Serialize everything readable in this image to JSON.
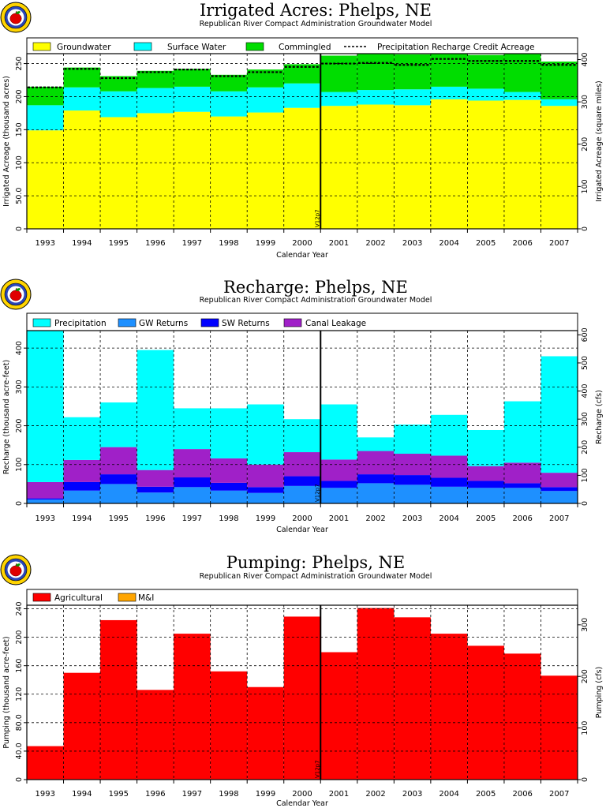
{
  "colors": {
    "groundwater": "#ffff00",
    "surface_water": "#00ffff",
    "commingled": "#00dd00",
    "precipitation": "#00ffff",
    "gw_returns": "#1e90ff",
    "sw_returns": "#0000ff",
    "canal_leakage": "#a020c8",
    "agricultural": "#ff0000",
    "mi": "#ffa500"
  },
  "icons": [
    "apple-logo-icon",
    "apple-logo-icon",
    "apple-logo-icon"
  ],
  "chart_data": [
    {
      "type": "bar",
      "stacked": true,
      "title": "Irrigated  Acres:  Phelps,  NE",
      "subtitle": "Republican  River  Compact  Administration  Groundwater  Model",
      "xlabel": "Calendar  Year",
      "ylabel": "Irrigated  Acreage  (thousand  acres)",
      "ylabel_right": "Irrigated  Acreage  (square  miles)",
      "categories": [
        "1993",
        "1994",
        "1995",
        "1996",
        "1997",
        "1998",
        "1999",
        "2000",
        "2001",
        "2002",
        "2003",
        "2004",
        "2005",
        "2006",
        "2007"
      ],
      "ylim": [
        0,
        265
      ],
      "yticks": [
        "0",
        "50.0",
        "100",
        "150",
        "200",
        "250"
      ],
      "ylim_right": [
        0,
        414
      ],
      "yticks_right": [
        "0",
        "100",
        "200",
        "300",
        "400"
      ],
      "marker": {
        "x": "2000.5",
        "label": "V12p7"
      },
      "grid": true,
      "legend_position": "top",
      "series": [
        {
          "name": "Groundwater",
          "color_key": "groundwater",
          "values": [
            149,
            179,
            169,
            175,
            177,
            170,
            176,
            183,
            186,
            188,
            187,
            196,
            194,
            195,
            186
          ]
        },
        {
          "name": "Surface  Water",
          "color_key": "surface_water",
          "values": [
            38,
            35,
            39,
            38,
            38,
            38,
            38,
            37,
            21,
            22,
            24,
            19,
            18,
            12,
            10
          ]
        },
        {
          "name": "Commingled",
          "color_key": "commingled",
          "values": [
            28,
            30,
            23,
            26,
            27,
            25,
            27,
            29,
            55,
            55,
            53,
            50,
            51,
            58,
            57
          ]
        }
      ],
      "line_series": {
        "name": "Precipitation  Recharge  Credit  Acreage",
        "values": [
          214,
          242,
          228,
          237,
          241,
          231,
          237,
          245,
          250,
          251,
          248,
          257,
          254,
          254,
          248
        ]
      }
    },
    {
      "type": "bar",
      "stacked": true,
      "title": "Recharge:  Phelps,  NE",
      "subtitle": "Republican  River  Compact  Administration  Groundwater  Model",
      "xlabel": "Calendar  Year",
      "ylabel": "Recharge  (thousand  acre-feet)",
      "ylabel_right": "Recharge  (cfs)",
      "categories": [
        "1993",
        "1994",
        "1995",
        "1996",
        "1997",
        "1998",
        "1999",
        "2000",
        "2001",
        "2002",
        "2003",
        "2004",
        "2005",
        "2006",
        "2007"
      ],
      "ylim": [
        0,
        445
      ],
      "yticks": [
        "0",
        "100",
        "200",
        "300",
        "400"
      ],
      "ylim_right": [
        0,
        615
      ],
      "yticks_right": [
        "0",
        "100",
        "200",
        "300",
        "400",
        "500",
        "600"
      ],
      "marker": {
        "x": "2000.5",
        "label": "V12p7"
      },
      "grid": true,
      "legend_position": "top",
      "series": [
        {
          "name": "GW  Returns",
          "color_key": "gw_returns",
          "values": [
            10,
            33,
            50,
            28,
            42,
            33,
            27,
            45,
            40,
            52,
            48,
            43,
            40,
            40,
            32
          ]
        },
        {
          "name": "SW  Returns",
          "color_key": "sw_returns",
          "values": [
            3,
            22,
            25,
            15,
            25,
            20,
            15,
            25,
            18,
            23,
            25,
            23,
            18,
            12,
            10
          ]
        },
        {
          "name": "Canal  Leakage",
          "color_key": "canal_leakage",
          "values": [
            42,
            57,
            70,
            43,
            73,
            63,
            58,
            62,
            55,
            60,
            55,
            57,
            38,
            53,
            37
          ]
        },
        {
          "name": "Precipitation",
          "color_key": "precipitation",
          "values": [
            390,
            110,
            115,
            309,
            105,
            129,
            155,
            85,
            142,
            35,
            75,
            105,
            93,
            158,
            300
          ]
        }
      ]
    },
    {
      "type": "bar",
      "stacked": true,
      "title": "Pumping:  Phelps,  NE",
      "subtitle": "Republican  River  Compact  Administration  Groundwater  Model",
      "xlabel": "Calendar  Year",
      "ylabel": "Pumping  (thousand  acre-feet)",
      "ylabel_right": "Pumping  (cfs)",
      "categories": [
        "1993",
        "1994",
        "1995",
        "1996",
        "1997",
        "1998",
        "1999",
        "2000",
        "2001",
        "2002",
        "2003",
        "2004",
        "2005",
        "2006",
        "2007"
      ],
      "ylim": [
        0,
        245
      ],
      "yticks": [
        "0",
        "40.0",
        "80.0",
        "120",
        "160",
        "200",
        "240"
      ],
      "ylim_right": [
        0,
        338
      ],
      "yticks_right": [
        "0",
        "100",
        "200",
        "300"
      ],
      "marker": {
        "x": "2000.5",
        "label": "V12p7"
      },
      "grid": true,
      "legend_position": "top",
      "series": [
        {
          "name": "Agricultural",
          "color_key": "agricultural",
          "values": [
            47,
            150,
            224,
            126,
            205,
            152,
            130,
            229,
            179,
            241,
            228,
            205,
            188,
            177,
            146
          ]
        },
        {
          "name": "M&I",
          "color_key": "mi",
          "values": [
            0,
            0,
            0,
            0,
            0,
            0,
            0,
            0,
            0,
            0,
            0,
            0,
            0,
            0,
            0
          ]
        }
      ]
    }
  ]
}
